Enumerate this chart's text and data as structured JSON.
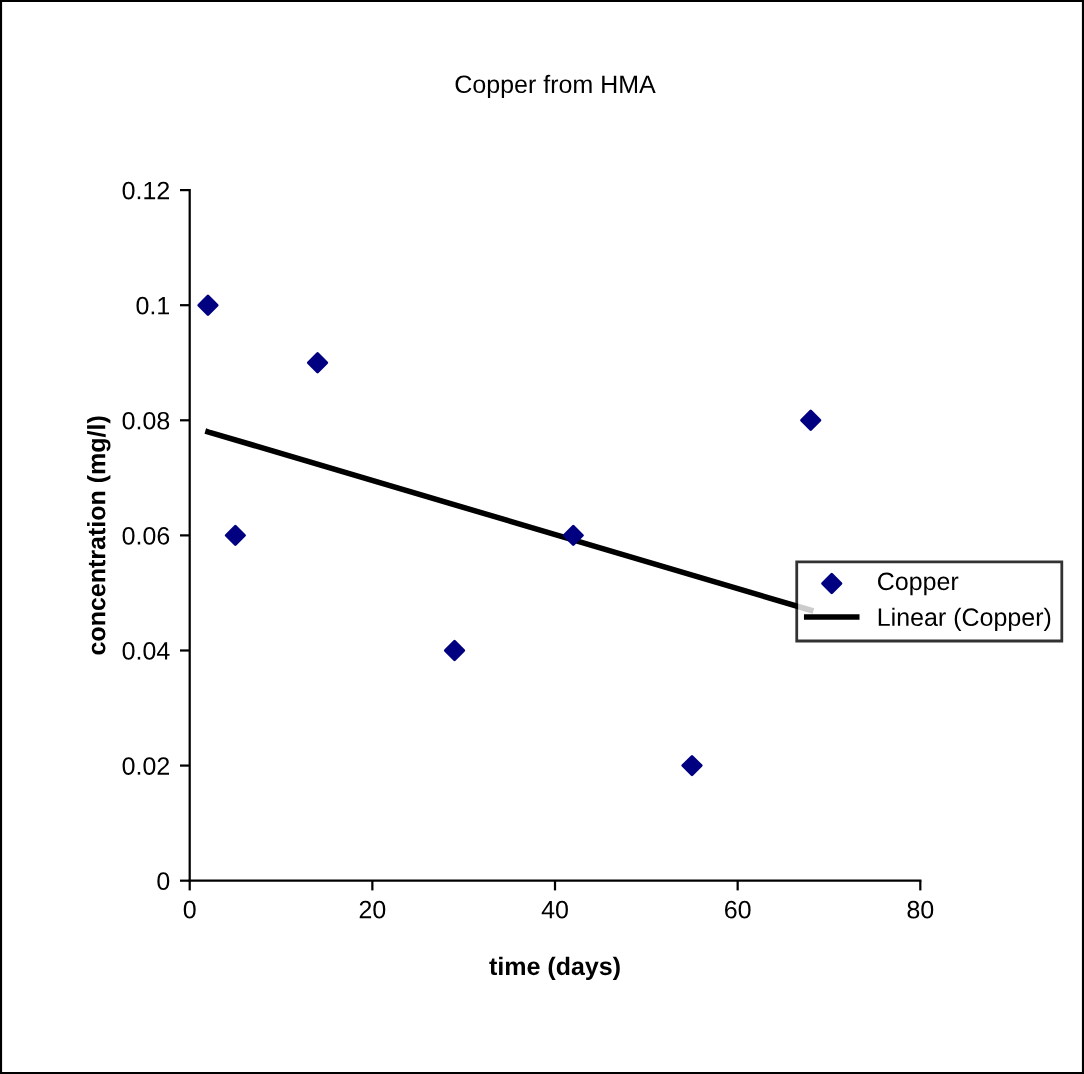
{
  "chart_data": {
    "type": "scatter",
    "title": "Copper from HMA",
    "xlabel": "time (days)",
    "ylabel": "concentration (mg/l)",
    "xlim": [
      0,
      80
    ],
    "xticks": [
      0,
      20,
      40,
      60,
      80
    ],
    "ylim": [
      0,
      0.12
    ],
    "yticks": [
      0,
      0.02,
      0.04,
      0.06,
      0.08,
      0.1,
      0.12
    ],
    "grid": false,
    "legend": "right",
    "marker": "diamond",
    "series": [
      {
        "name": "Copper",
        "color": "#000080",
        "x": [
          2,
          5,
          14,
          29,
          42,
          55,
          68
        ],
        "values": [
          0.1,
          0.06,
          0.09,
          0.04,
          0.06,
          0.02,
          0.08
        ]
      },
      {
        "name": "Linear (Copper)",
        "type": "line",
        "color": "#000000",
        "marker": "none",
        "line_style": "solid",
        "x": [
          2,
          68
        ],
        "values": [
          0.078,
          0.047
        ]
      }
    ]
  }
}
